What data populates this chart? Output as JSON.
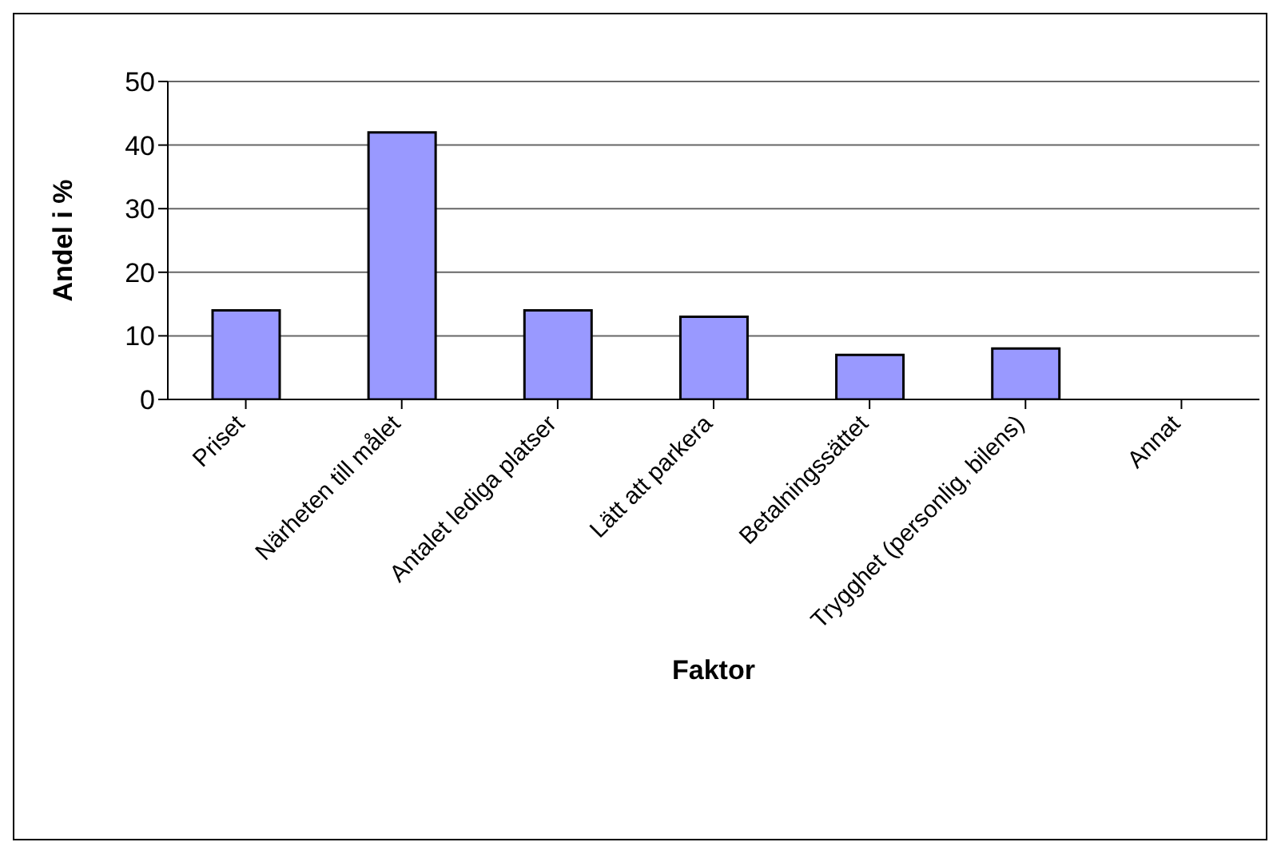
{
  "chart_data": {
    "type": "bar",
    "xlabel": "Faktor",
    "ylabel": "Andel i %",
    "categories": [
      "Priset",
      "Närheten till målet",
      "Antalet lediga platser",
      "Lätt att parkera",
      "Betalningssättet",
      "Trygghet (personlig, bilens)",
      "Annat"
    ],
    "values": [
      14,
      42,
      14,
      13,
      7,
      8,
      0
    ],
    "color": "#9999ff",
    "ylim": [
      0,
      50
    ],
    "yticks": [
      0,
      10,
      20,
      30,
      40,
      50
    ],
    "grid": "y"
  }
}
